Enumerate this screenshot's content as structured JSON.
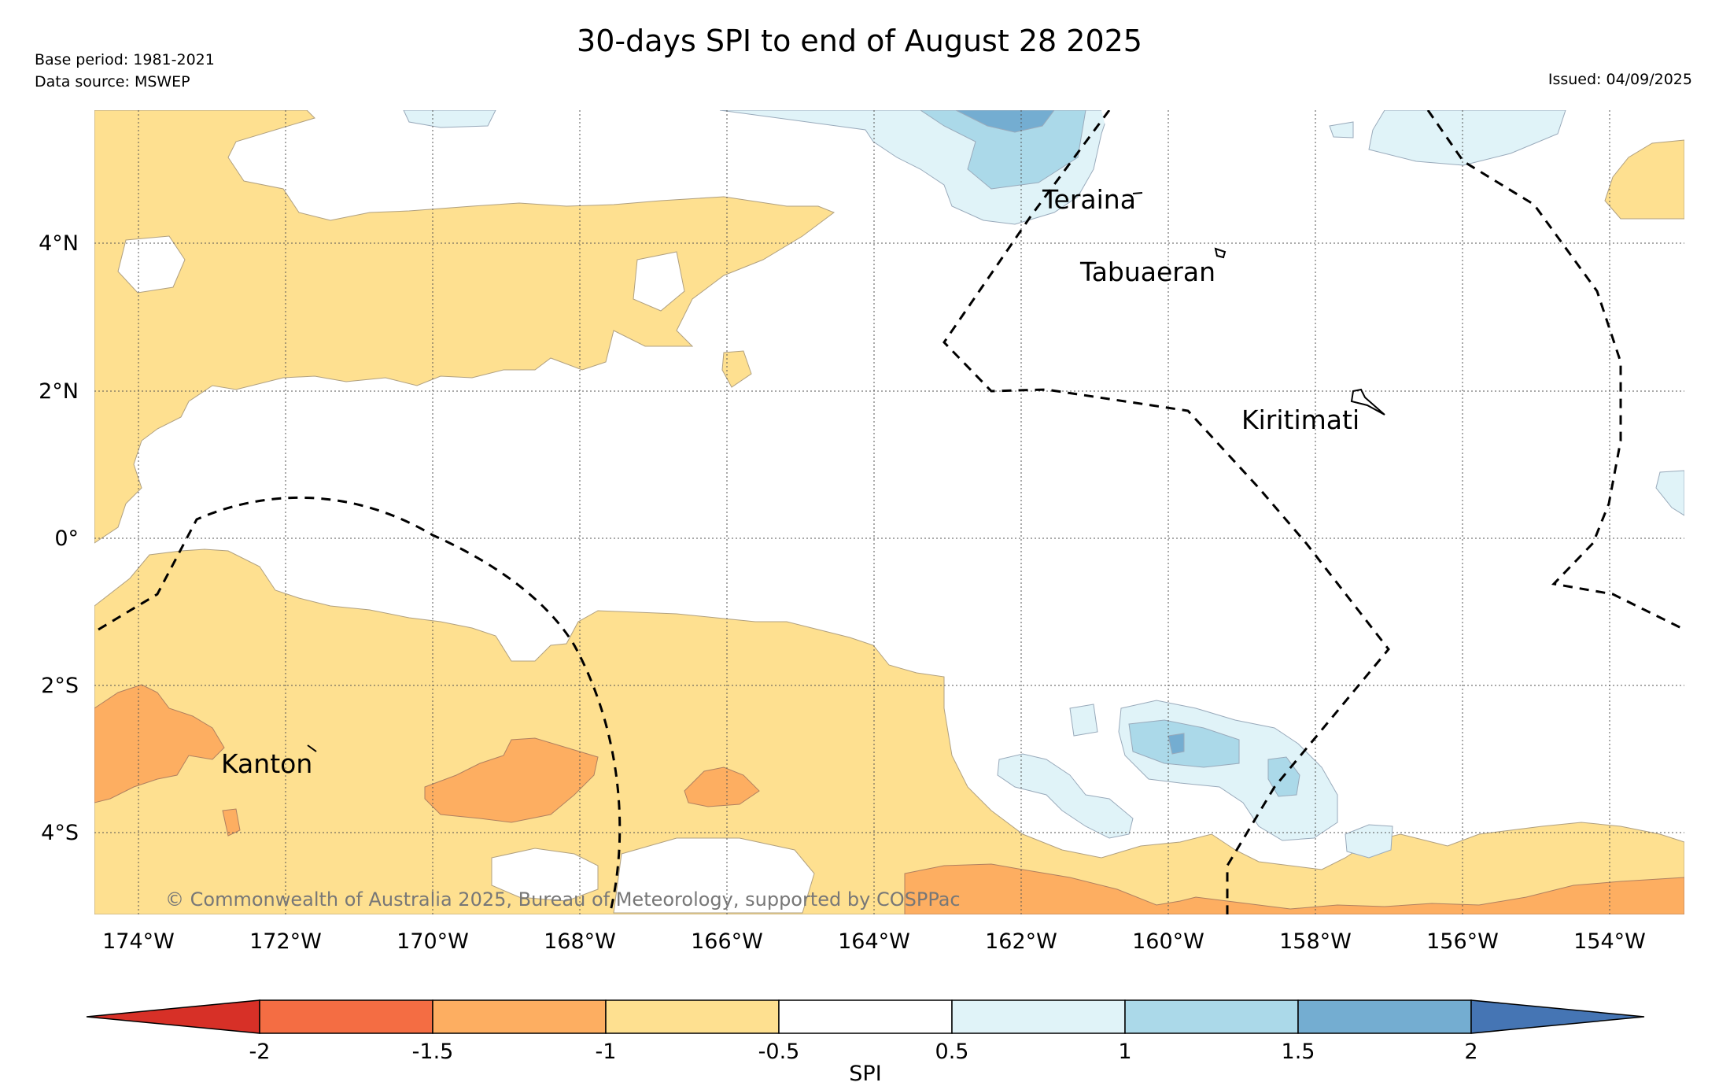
{
  "title": "30-days SPI to end of August 28 2025",
  "meta": {
    "base_period": "Base period: 1981-2021",
    "data_source": "Data source: MSWEP",
    "issued": "Issued: 04/09/2025"
  },
  "copyright": "© Commonwealth of Australia 2025, Bureau of Meteorology, supported by COSPPac",
  "axes": {
    "lat_ticks": [
      "4°N",
      "2°N",
      "0°",
      "2°S",
      "4°S"
    ],
    "lon_ticks": [
      "174°W",
      "172°W",
      "170°W",
      "168°W",
      "166°W",
      "164°W",
      "162°W",
      "160°W",
      "158°W",
      "156°W",
      "154°W"
    ]
  },
  "places": [
    "Teraina",
    "Tabuaeran",
    "Kiritimati",
    "Kanton"
  ],
  "colorbar": {
    "label": "SPI",
    "ticks": [
      "-2",
      "-1.5",
      "-1",
      "-0.5",
      "0.5",
      "1",
      "1.5",
      "2"
    ],
    "colors": [
      "#d73027",
      "#f46d43",
      "#fdae61",
      "#fee090",
      "#ffffff",
      "#e0f3f8",
      "#abd9e9",
      "#74add1",
      "#4575b4"
    ]
  }
}
